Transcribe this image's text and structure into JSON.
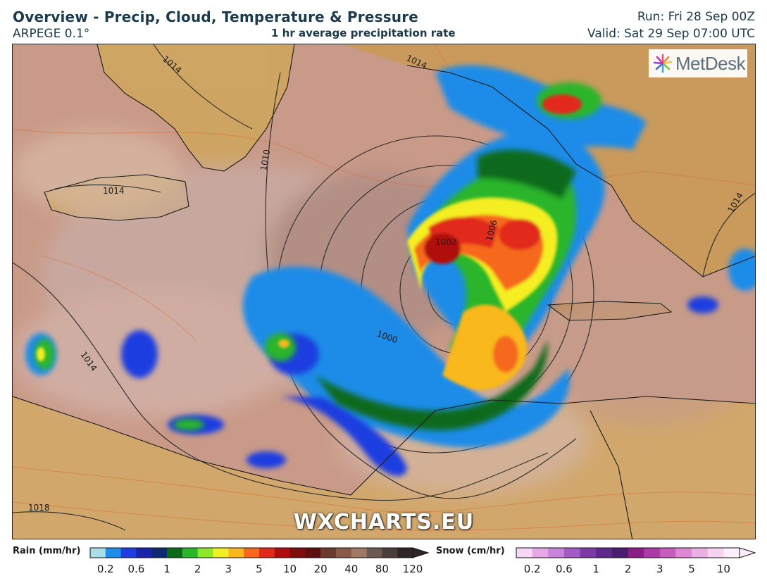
{
  "header": {
    "title": "Overview - Precip, Cloud, Temperature & Pressure",
    "model": "ARPEGE 0.1°",
    "subtitle": "1 hr average precipitation rate",
    "run": "Run: Fri 28 Sep 00Z",
    "valid": "Valid: Sat 29 Sep 07:00 UTC"
  },
  "map": {
    "brand_logo": "MetDesk",
    "logo_icon": "metdesk-starburst-icon",
    "watermark": "WXCHARTS.EU",
    "isobar_labels": [
      "1014",
      "1014",
      "1010",
      "1014",
      "1018",
      "1014",
      "1014",
      "1006",
      "1002",
      "1000"
    ],
    "colors": {
      "sea_background": "#c99a88",
      "land_background": "#d6a86a",
      "cloud_tint": "#cdb4ad"
    }
  },
  "legend": {
    "rain": {
      "title": "Rain (mm/hr)",
      "colors": [
        "#a9dde8",
        "#1f8ce8",
        "#1f3ee0",
        "#1a24a8",
        "#0e2a70",
        "#0a6a1a",
        "#2ab52a",
        "#8de82a",
        "#f4ee24",
        "#f9b81e",
        "#f6691c",
        "#e12a1a",
        "#b00e0e",
        "#7e0e0e",
        "#5e1010",
        "#6a3a2c",
        "#8a5a48",
        "#a07a66",
        "#6a5a52",
        "#4a3e3a",
        "#2e2624"
      ],
      "ticks": [
        "0.2",
        "0.6",
        "1",
        "2",
        "3",
        "5",
        "10",
        "20",
        "40",
        "80",
        "120"
      ]
    },
    "snow": {
      "title": "Snow (cm/hr)",
      "colors": [
        "#f8d8f2",
        "#e6a8e6",
        "#c884dc",
        "#a45cc4",
        "#7e3aa8",
        "#5e2a8a",
        "#4a1e6e",
        "#8a1e84",
        "#ac3aa8",
        "#c65cbe",
        "#dc88d2",
        "#eab0e2",
        "#f6d4f0",
        "#fdeefb"
      ],
      "ticks": [
        "0.2",
        "0.6",
        "1",
        "2",
        "3",
        "5",
        "10"
      ]
    }
  }
}
